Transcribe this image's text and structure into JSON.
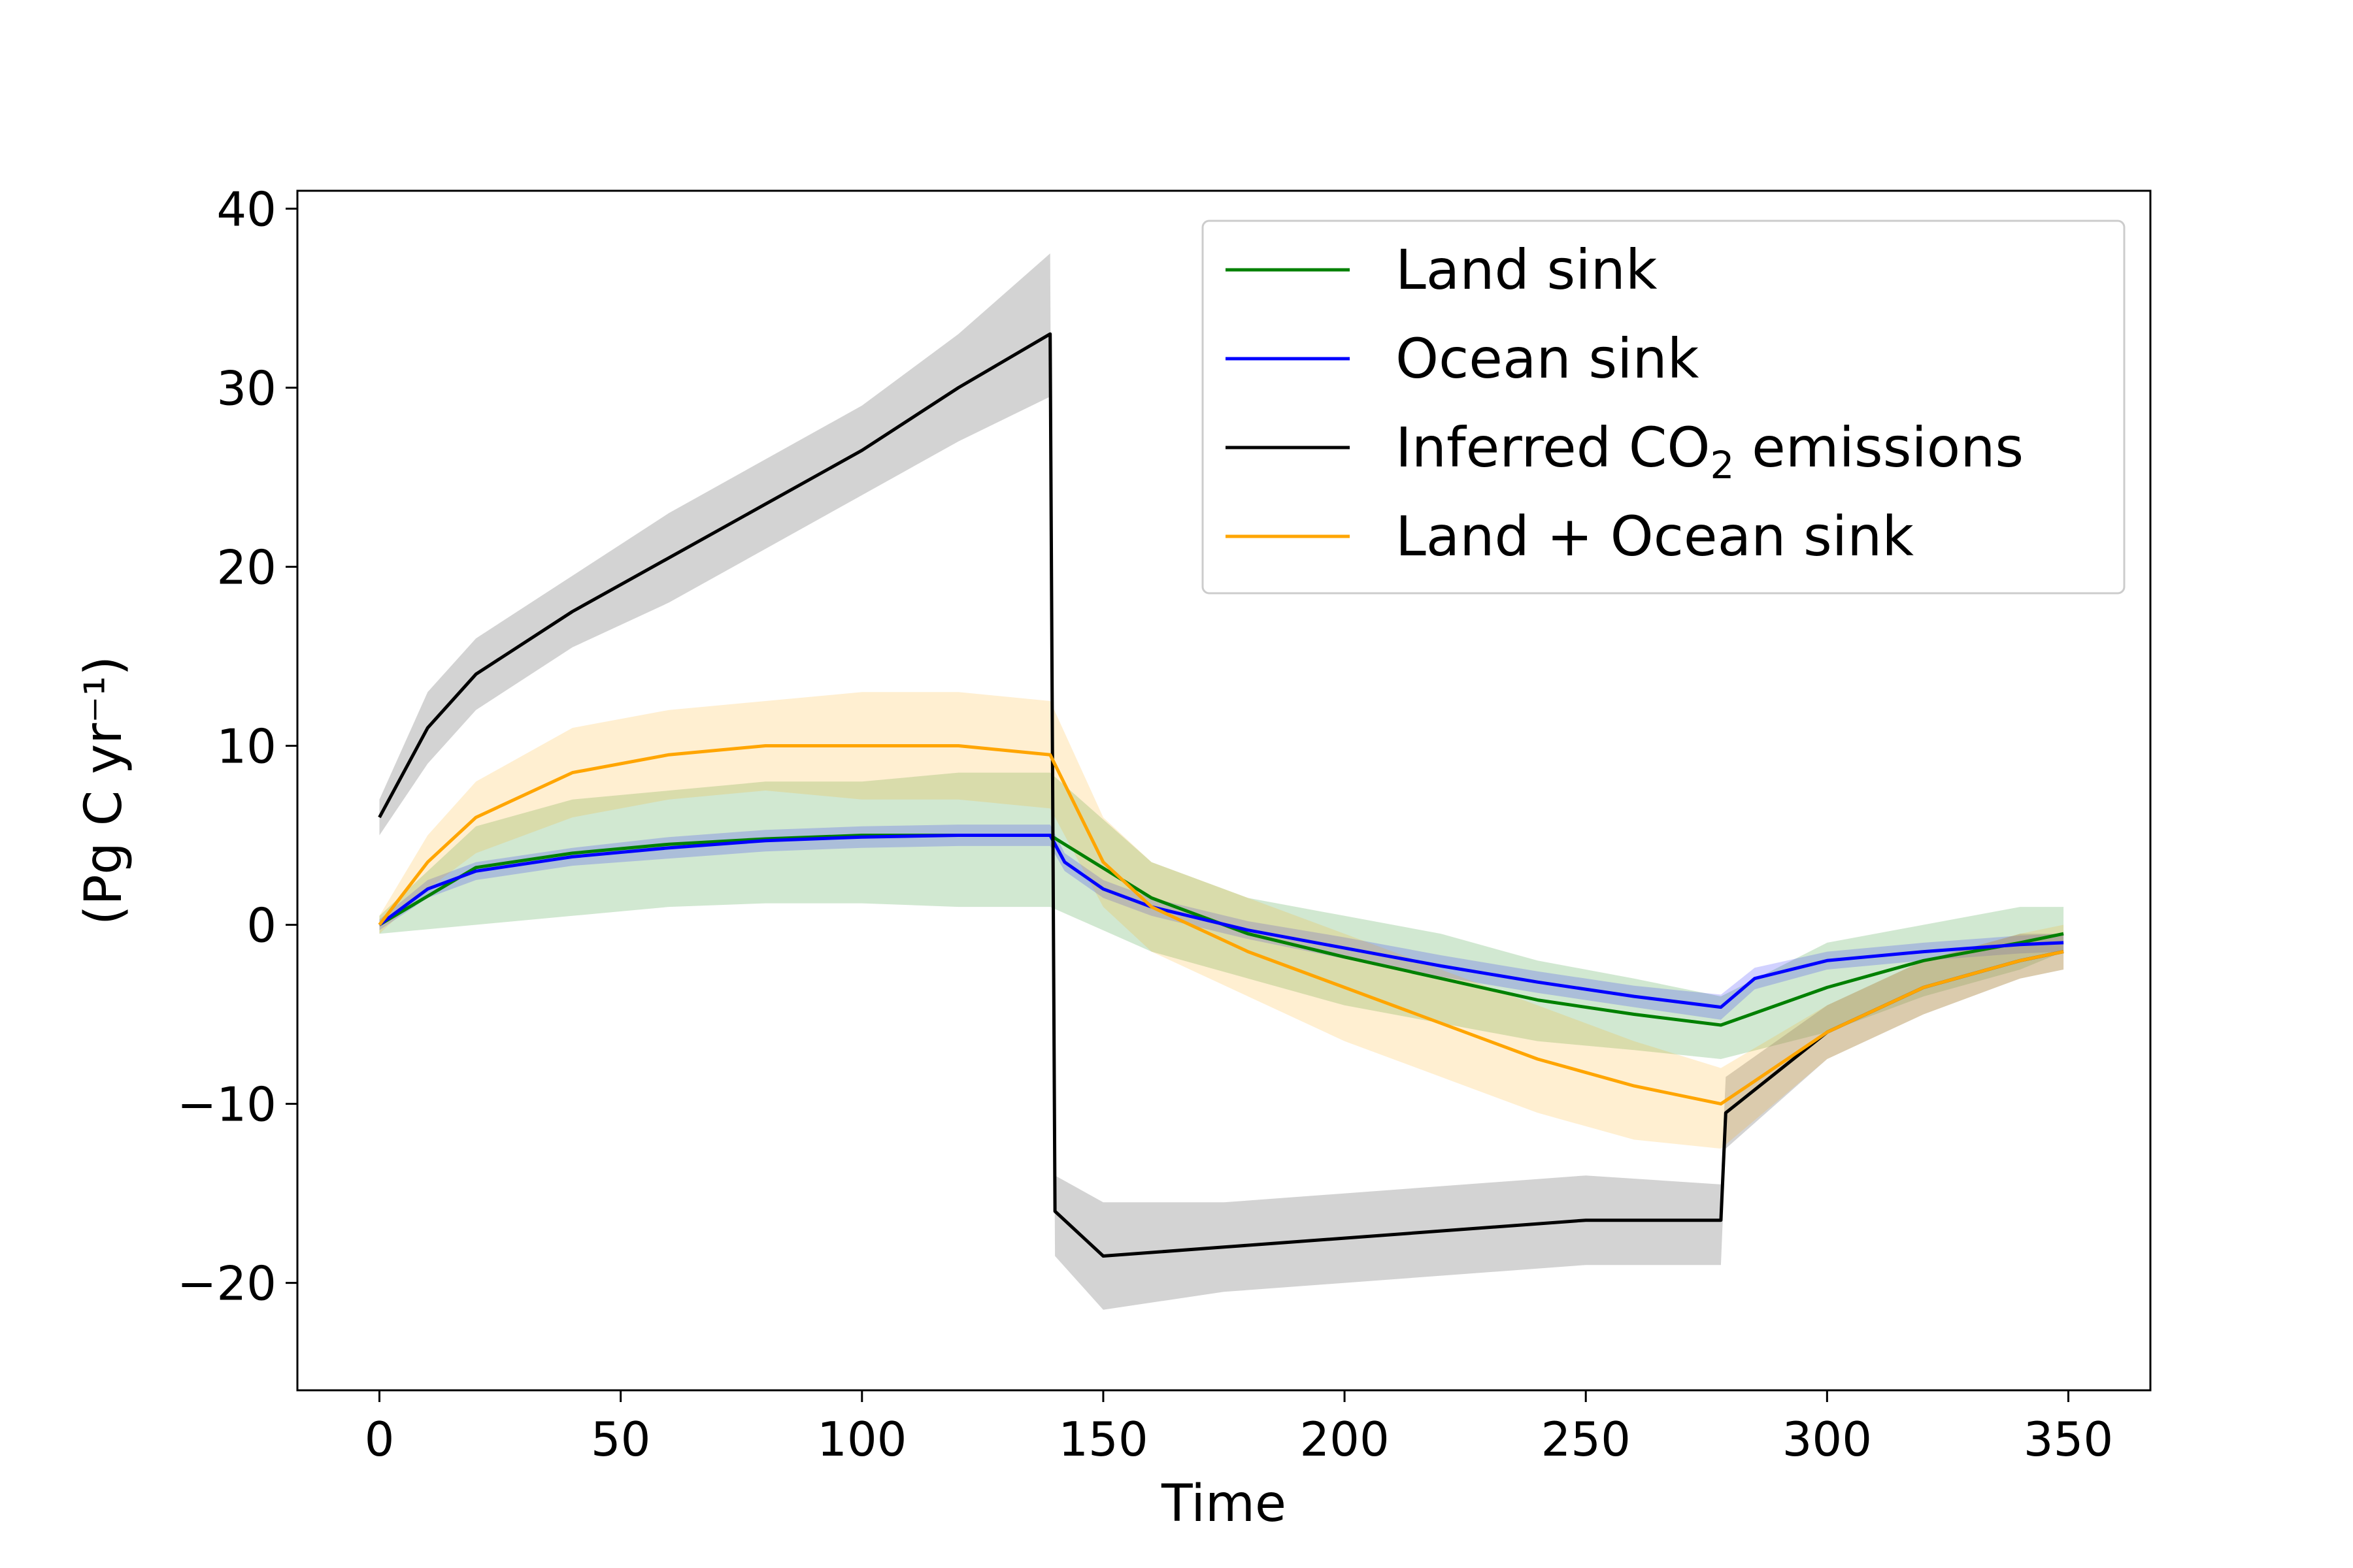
{
  "chart_data": {
    "type": "line",
    "xlabel": "Time",
    "ylabel": "(Pg C yr⁻¹)",
    "xlim": [
      -17,
      367
    ],
    "ylim": [
      -26,
      41
    ],
    "x_ticks": [
      "0",
      "50",
      "100",
      "150",
      "200",
      "250",
      "300",
      "350"
    ],
    "y_ticks": [
      "−20",
      "−10",
      "0",
      "10",
      "20",
      "30",
      "40"
    ],
    "grid": false,
    "legend_placement": "top-right",
    "series": [
      {
        "name": "Land sink",
        "color": "#008000",
        "x": [
          0,
          20,
          40,
          60,
          80,
          100,
          120,
          139,
          160,
          180,
          200,
          220,
          240,
          260,
          278,
          300,
          320,
          340,
          349
        ],
        "values": [
          0,
          3.2,
          4.0,
          4.5,
          4.8,
          5.0,
          5.0,
          5.0,
          1.5,
          -0.5,
          -1.8,
          -3.0,
          -4.2,
          -5.0,
          -5.6,
          -3.5,
          -2.0,
          -1.0,
          -0.5
        ],
        "band_lower": [
          -0.5,
          0.0,
          0.5,
          1.0,
          1.2,
          1.2,
          1.0,
          1.0,
          -1.5,
          -3.0,
          -4.5,
          -5.5,
          -6.5,
          -7.0,
          -7.5,
          -6.0,
          -4.0,
          -2.5,
          -1.5
        ],
        "band_upper": [
          0.5,
          5.5,
          7.0,
          7.5,
          8.0,
          8.0,
          8.5,
          8.5,
          3.5,
          1.5,
          0.5,
          -0.5,
          -2.0,
          -3.0,
          -4.0,
          -1.0,
          0.0,
          1.0,
          1.0
        ]
      },
      {
        "name": "Ocean sink",
        "color": "#0000ff",
        "x": [
          0,
          10,
          20,
          40,
          60,
          80,
          100,
          120,
          139,
          142,
          150,
          160,
          180,
          200,
          220,
          240,
          260,
          278,
          285,
          300,
          320,
          340,
          349
        ],
        "values": [
          0,
          2.0,
          3.0,
          3.8,
          4.3,
          4.7,
          4.9,
          5.0,
          5.0,
          3.5,
          2.0,
          1.0,
          -0.3,
          -1.3,
          -2.3,
          -3.2,
          -4.0,
          -4.6,
          -3.0,
          -2.0,
          -1.5,
          -1.1,
          -1.0
        ],
        "band_lower": [
          -0.3,
          1.5,
          2.5,
          3.3,
          3.7,
          4.1,
          4.3,
          4.4,
          4.4,
          3.0,
          1.5,
          0.5,
          -0.8,
          -1.9,
          -2.9,
          -3.8,
          -4.6,
          -5.3,
          -3.6,
          -2.5,
          -2.0,
          -1.6,
          -1.5
        ],
        "band_upper": [
          0.3,
          2.5,
          3.5,
          4.3,
          4.9,
          5.3,
          5.5,
          5.6,
          5.6,
          4.0,
          2.5,
          1.5,
          0.2,
          -0.7,
          -1.7,
          -2.6,
          -3.4,
          -3.9,
          -2.4,
          -1.5,
          -1.0,
          -0.6,
          -0.5
        ]
      },
      {
        "name": "Inferred CO₂ emissions",
        "name_main": "Inferred CO",
        "name_sub": "2",
        "name_tail": " emissions",
        "color": "#000000",
        "x": [
          0,
          10,
          20,
          40,
          60,
          80,
          100,
          120,
          139,
          140,
          150,
          175,
          200,
          225,
          250,
          278,
          279,
          300,
          320,
          340,
          349
        ],
        "values": [
          6,
          11,
          14,
          17.5,
          20.5,
          23.5,
          26.5,
          30.0,
          33.0,
          -16.0,
          -18.5,
          -18.0,
          -17.5,
          -17.0,
          -16.5,
          -16.5,
          -10.5,
          -6.0,
          -3.5,
          -2.0,
          -1.5
        ],
        "band_lower": [
          5,
          9,
          12,
          15.5,
          18,
          21,
          24,
          27,
          29.5,
          -18.5,
          -21.5,
          -20.5,
          -20.0,
          -19.5,
          -19.0,
          -19.0,
          -12.5,
          -7.5,
          -5.0,
          -3.0,
          -2.5
        ],
        "band_upper": [
          7,
          13,
          16,
          19.5,
          23,
          26,
          29,
          33,
          37.5,
          -14.0,
          -15.5,
          -15.5,
          -15.0,
          -14.5,
          -14.0,
          -14.5,
          -8.5,
          -4.5,
          -2.0,
          -0.5,
          -0.5
        ]
      },
      {
        "name": "Land + Ocean sink",
        "color": "#ffa500",
        "x": [
          0,
          10,
          20,
          40,
          60,
          80,
          100,
          120,
          139,
          150,
          160,
          180,
          200,
          220,
          240,
          260,
          278,
          300,
          320,
          340,
          349
        ],
        "values": [
          0,
          3.5,
          6.0,
          8.5,
          9.5,
          10.0,
          10.0,
          10.0,
          9.5,
          3.5,
          1.0,
          -1.5,
          -3.5,
          -5.5,
          -7.5,
          -9.0,
          -10.0,
          -6.0,
          -3.5,
          -2.0,
          -1.5
        ],
        "band_lower": [
          -0.5,
          2.0,
          4.0,
          6.0,
          7.0,
          7.5,
          7.0,
          7.0,
          6.5,
          1.0,
          -1.5,
          -4.0,
          -6.5,
          -8.5,
          -10.5,
          -12.0,
          -12.5,
          -7.5,
          -5.0,
          -3.0,
          -2.5
        ],
        "band_upper": [
          0.5,
          5.0,
          8.0,
          11.0,
          12.0,
          12.5,
          13.0,
          13.0,
          12.5,
          6.0,
          3.5,
          1.5,
          -0.5,
          -2.5,
          -4.5,
          -6.5,
          -8.0,
          -4.5,
          -2.0,
          -0.5,
          0.0
        ]
      }
    ]
  }
}
